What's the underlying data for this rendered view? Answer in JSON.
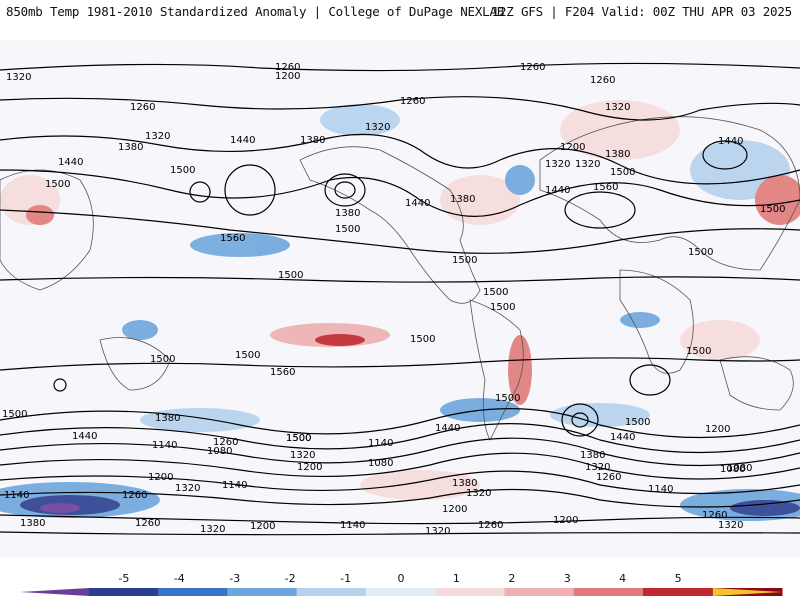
{
  "header": {
    "left": "850mb Temp 1981-2010 Standardized Anomaly | College of DuPage NEXLAB",
    "right": "12Z GFS | F204 Valid: 00Z THU APR 03 2025"
  },
  "colorbar": {
    "ticks": [
      "-5",
      "-4",
      "-3",
      "-2",
      "-1",
      "0",
      "1",
      "2",
      "3",
      "4",
      "5"
    ],
    "colors": [
      "#6a3d9a",
      "#2b3f8f",
      "#3377c4",
      "#6fa6dc",
      "#b6d2ee",
      "#e3edf8",
      "#f6dcdc",
      "#eeb0b0",
      "#e07a7a",
      "#c0262d",
      "#8b0a14",
      "#f1c232"
    ],
    "min": -5,
    "max": 5
  },
  "contour_labels": {
    "row1": [
      "1320",
      "1260",
      "1260",
      "1260"
    ],
    "row2": [
      "1200",
      "1260",
      "1320",
      "1260",
      "1320"
    ],
    "row3": [
      "1320",
      "1380",
      "1440",
      "1380",
      "1320",
      "1200",
      "1380",
      "1440"
    ],
    "row4": [
      "1440",
      "1500",
      "1500",
      "1380",
      "1440",
      "1380",
      "1320",
      "1440",
      "1560",
      "1500",
      "1500"
    ],
    "row5": [
      "1560",
      "1500",
      "1500",
      "1500",
      "1500"
    ],
    "row6": [
      "1500",
      "1500",
      "1500",
      "1500",
      "1500"
    ],
    "row7": [
      "1560",
      "1500",
      "1500",
      "1500"
    ],
    "row8": [
      "1500",
      "1440",
      "1380",
      "1500",
      "1440",
      "1200"
    ],
    "row9": [
      "1440",
      "1140",
      "1260",
      "1500",
      "1140",
      "1320",
      "1380",
      "1080"
    ],
    "row10": [
      "1080",
      "1320",
      "1200",
      "1080",
      "1260",
      "1080"
    ],
    "row11": [
      "1200",
      "1260",
      "1320",
      "1140",
      "1380",
      "1320",
      "1140"
    ],
    "row12": [
      "1140",
      "1380",
      "1260",
      "1320",
      "1200",
      "1140",
      "1320",
      "1200",
      "1260",
      "1200",
      "1260",
      "1320"
    ]
  }
}
